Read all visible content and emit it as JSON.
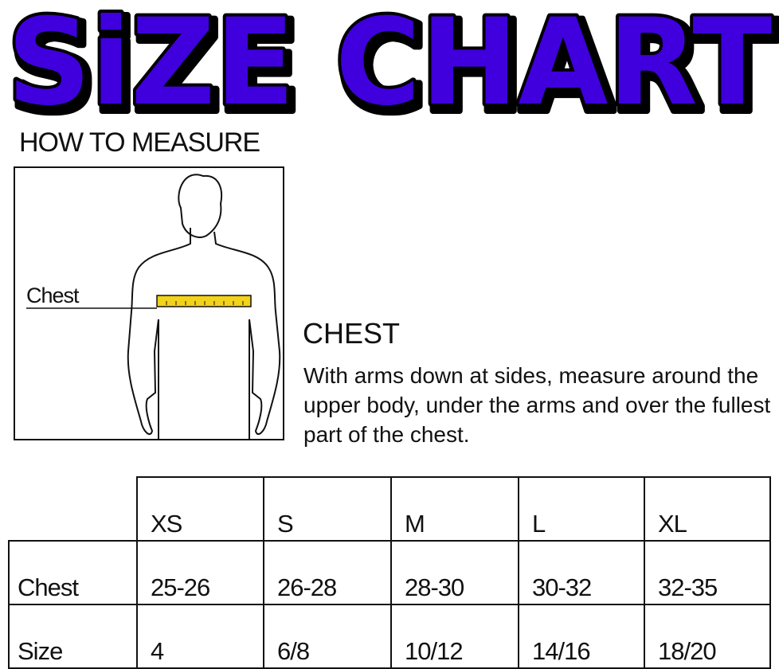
{
  "title": "SiZE CHART",
  "colors": {
    "title_fill": "#3f00dd",
    "title_stroke": "#000000",
    "tape": "#f2d21b"
  },
  "how_to_measure": {
    "heading": "HOW TO MEASURE",
    "figure_label": "Chest"
  },
  "chest": {
    "heading": "CHEST",
    "description": "With arms down at sides, measure around the upper body, under the arms and over the fullest part of the chest."
  },
  "table": {
    "columns": [
      "XS",
      "S",
      "M",
      "L",
      "XL"
    ],
    "rows": [
      {
        "label": "Chest",
        "values": [
          "25-26",
          "26-28",
          "28-30",
          "30-32",
          "32-35"
        ]
      },
      {
        "label": "Size",
        "values": [
          "4",
          "6/8",
          "10/12",
          "14/16",
          "18/20"
        ]
      }
    ]
  }
}
